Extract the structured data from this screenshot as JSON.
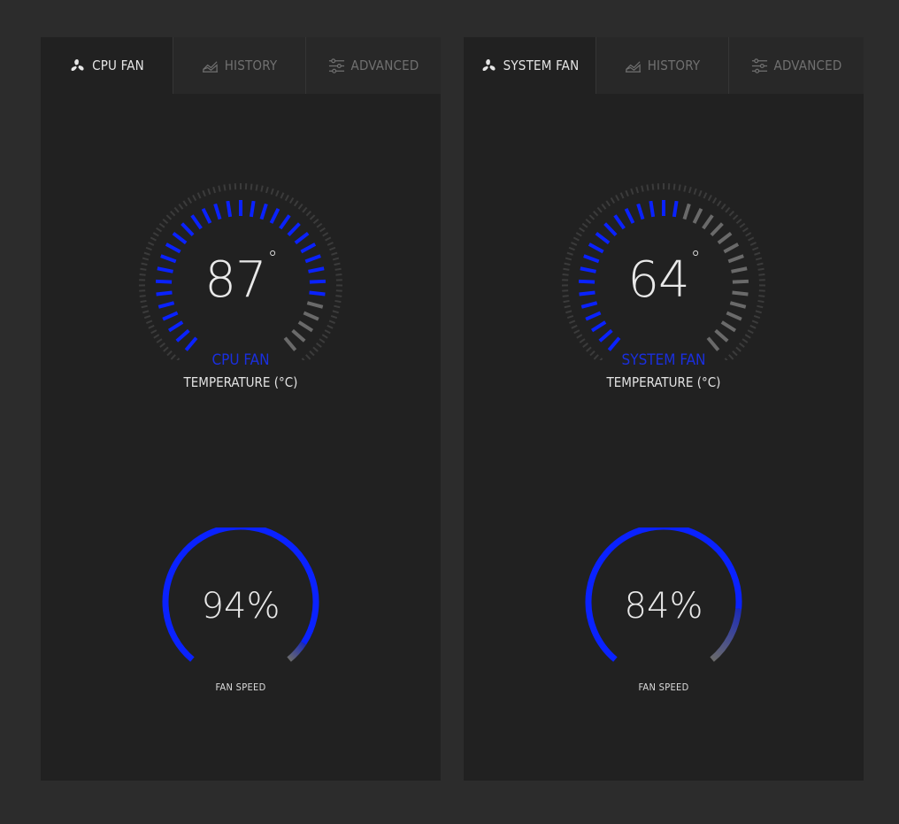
{
  "colors": {
    "accent": "#0a22ff",
    "inactive": "#6a6a6a",
    "faint": "#3b3b3b"
  },
  "panels": [
    {
      "tabs": [
        {
          "label": "CPU FAN",
          "icon": "fan-icon",
          "active": true
        },
        {
          "label": "HISTORY",
          "icon": "chart-icon",
          "active": false
        },
        {
          "label": "ADVANCED",
          "icon": "sliders-icon",
          "active": false
        }
      ],
      "temperature": {
        "value": "87",
        "degree": "°",
        "level": 0.85,
        "name": "CPU FAN",
        "unit": "TEMPERATURE (°C)"
      },
      "fan_speed": {
        "value": "94%",
        "level": 0.94,
        "label": "FAN SPEED"
      }
    },
    {
      "tabs": [
        {
          "label": "SYSTEM FAN",
          "icon": "fan-icon",
          "active": true
        },
        {
          "label": "HISTORY",
          "icon": "chart-icon",
          "active": false
        },
        {
          "label": "ADVANCED",
          "icon": "sliders-icon",
          "active": false
        }
      ],
      "temperature": {
        "value": "64",
        "degree": "°",
        "level": 0.55,
        "name": "SYSTEM FAN",
        "unit": "TEMPERATURE (°C)"
      },
      "fan_speed": {
        "value": "84%",
        "level": 0.84,
        "label": "FAN SPEED"
      }
    }
  ]
}
